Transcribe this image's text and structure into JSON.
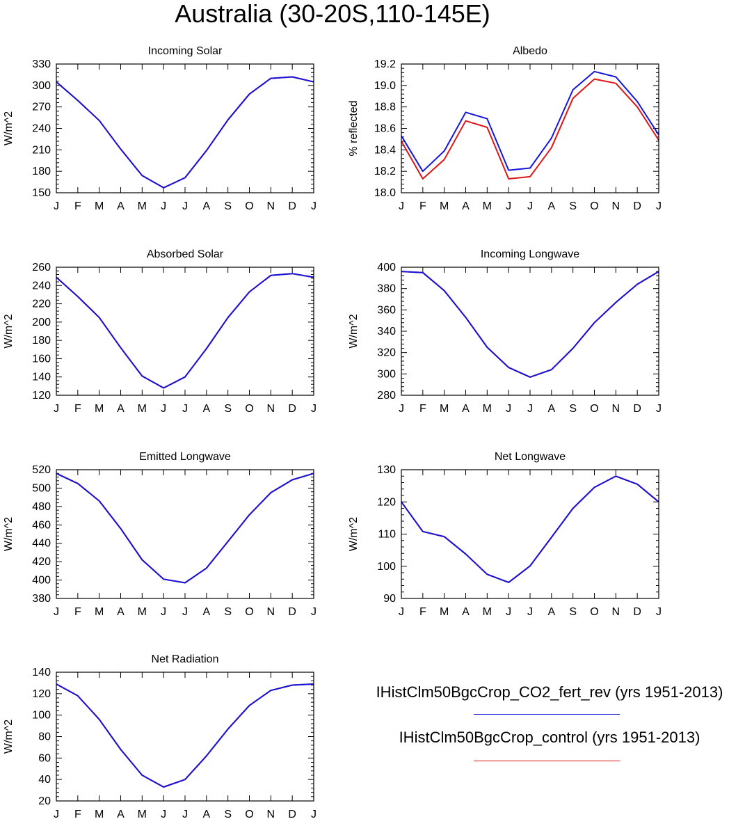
{
  "title": "Australia (30-20S,110-145E)",
  "colors": {
    "fert": "#1414dc",
    "control": "#e01414"
  },
  "legend": [
    {
      "label": "IHistClm50BgcCrop_CO2_fert_rev (yrs 1951-2013)",
      "color": "#1414dc"
    },
    {
      "label": "IHistClm50BgcCrop_control (yrs 1951-2013)",
      "color": "#e01414"
    }
  ],
  "chart_data": [
    {
      "type": "line",
      "title": "Incoming Solar",
      "ylabel": "W/m^2",
      "categories": [
        "J",
        "F",
        "M",
        "A",
        "M",
        "J",
        "J",
        "A",
        "S",
        "O",
        "N",
        "D",
        "J"
      ],
      "ylim": [
        150,
        330
      ],
      "yticks": [
        150,
        180,
        210,
        240,
        270,
        300,
        330
      ],
      "series": [
        {
          "color": "#e01414",
          "values": [
            305,
            279,
            251,
            211,
            174,
            157,
            171,
            209,
            252,
            288,
            310,
            312,
            305
          ]
        },
        {
          "color": "#1414dc",
          "values": [
            305,
            279,
            251,
            211,
            174,
            157,
            171,
            209,
            252,
            288,
            310,
            312,
            305
          ]
        }
      ]
    },
    {
      "type": "line",
      "title": "Albedo",
      "ylabel": "% reflected",
      "categories": [
        "J",
        "F",
        "M",
        "A",
        "M",
        "J",
        "J",
        "A",
        "S",
        "O",
        "N",
        "D",
        "J"
      ],
      "ylim": [
        18.0,
        19.2
      ],
      "yticks": [
        18.0,
        18.2,
        18.4,
        18.6,
        18.8,
        19.0,
        19.2
      ],
      "series": [
        {
          "color": "#e01414",
          "values": [
            18.48,
            18.13,
            18.31,
            18.67,
            18.61,
            18.13,
            18.15,
            18.42,
            18.88,
            19.06,
            19.02,
            18.8,
            18.49
          ]
        },
        {
          "color": "#1414dc",
          "values": [
            18.53,
            18.2,
            18.39,
            18.75,
            18.69,
            18.21,
            18.23,
            18.51,
            18.96,
            19.13,
            19.08,
            18.85,
            18.54
          ]
        }
      ]
    },
    {
      "type": "line",
      "title": "Absorbed Solar",
      "ylabel": "W/m^2",
      "categories": [
        "J",
        "F",
        "M",
        "A",
        "M",
        "J",
        "J",
        "A",
        "S",
        "O",
        "N",
        "D",
        "J"
      ],
      "ylim": [
        120,
        260
      ],
      "yticks": [
        120,
        140,
        160,
        180,
        200,
        220,
        240,
        260
      ],
      "series": [
        {
          "color": "#e01414",
          "values": [
            249,
            228,
            205,
            172,
            141,
            128,
            140,
            171,
            205,
            233,
            251,
            253,
            249
          ]
        },
        {
          "color": "#1414dc",
          "values": [
            249,
            228,
            205,
            172,
            141,
            128,
            140,
            171,
            205,
            233,
            251,
            253,
            249
          ]
        }
      ]
    },
    {
      "type": "line",
      "title": "Incoming Longwave",
      "ylabel": "W/m^2",
      "categories": [
        "J",
        "F",
        "M",
        "A",
        "M",
        "J",
        "J",
        "A",
        "S",
        "O",
        "N",
        "D",
        "J"
      ],
      "ylim": [
        280,
        400
      ],
      "yticks": [
        280,
        300,
        320,
        340,
        360,
        380,
        400
      ],
      "series": [
        {
          "color": "#e01414",
          "values": [
            396,
            395,
            378,
            353,
            325,
            306,
            297,
            304,
            324,
            348,
            367,
            384,
            396
          ]
        },
        {
          "color": "#1414dc",
          "values": [
            396,
            395,
            378,
            353,
            325,
            306,
            297,
            304,
            324,
            348,
            367,
            384,
            396
          ]
        }
      ]
    },
    {
      "type": "line",
      "title": "Emitted Longwave",
      "ylabel": "W/m^2",
      "categories": [
        "J",
        "F",
        "M",
        "A",
        "M",
        "J",
        "J",
        "A",
        "S",
        "O",
        "N",
        "D",
        "J"
      ],
      "ylim": [
        380,
        520
      ],
      "yticks": [
        380,
        400,
        420,
        440,
        460,
        480,
        500,
        520
      ],
      "series": [
        {
          "color": "#e01414",
          "values": [
            516,
            505,
            486,
            456,
            422,
            401,
            397,
            413,
            442,
            471,
            495,
            509,
            516
          ]
        },
        {
          "color": "#1414dc",
          "values": [
            516,
            505,
            486,
            456,
            422,
            401,
            397,
            413,
            442,
            471,
            495,
            509,
            516
          ]
        }
      ]
    },
    {
      "type": "line",
      "title": "Net Longwave",
      "ylabel": "W/m^2",
      "categories": [
        "J",
        "F",
        "M",
        "A",
        "M",
        "J",
        "J",
        "A",
        "S",
        "O",
        "N",
        "D",
        "J"
      ],
      "ylim": [
        90,
        130
      ],
      "yticks": [
        90,
        100,
        110,
        120,
        130
      ],
      "series": [
        {
          "color": "#e01414",
          "values": [
            120,
            110.8,
            109.2,
            103.8,
            97.5,
            95,
            100.1,
            109,
            118,
            124.5,
            128,
            125.5,
            120
          ]
        },
        {
          "color": "#1414dc",
          "values": [
            120,
            110.8,
            109.2,
            103.8,
            97.5,
            95,
            100.1,
            109,
            118,
            124.5,
            128,
            125.5,
            120
          ]
        }
      ]
    },
    {
      "type": "line",
      "title": "Net Radiation",
      "ylabel": "W/m^2",
      "categories": [
        "J",
        "F",
        "M",
        "A",
        "M",
        "J",
        "J",
        "A",
        "S",
        "O",
        "N",
        "D",
        "J"
      ],
      "ylim": [
        20,
        140
      ],
      "yticks": [
        20,
        40,
        60,
        80,
        100,
        120,
        140
      ],
      "series": [
        {
          "color": "#e01414",
          "values": [
            129,
            118,
            96,
            68,
            44,
            33,
            40,
            62,
            87,
            109,
            123,
            128,
            129
          ]
        },
        {
          "color": "#1414dc",
          "values": [
            129,
            118,
            96,
            68,
            44,
            33,
            40,
            62,
            87,
            109,
            123,
            128,
            129
          ]
        }
      ]
    }
  ]
}
